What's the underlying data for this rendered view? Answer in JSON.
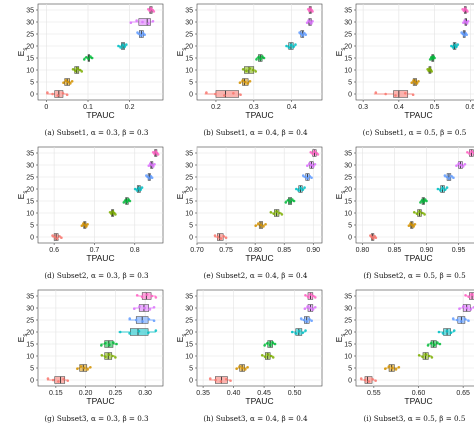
{
  "figure": {
    "colors": {
      "0": "#f8766d",
      "5": "#d39200",
      "10": "#7cae00",
      "15": "#00ba38",
      "20": "#00bfc4",
      "25": "#619cff",
      "30": "#db72fb",
      "35": "#ff61c3"
    }
  },
  "chart_data": [
    {
      "type": "boxplot",
      "caption": "(a) Subset1, α = 0.3, β = 0.3",
      "xlabel": "TPAUC",
      "ylabel": "E_s",
      "xlim": [
        -0.02,
        0.28
      ],
      "xticks": [
        0.0,
        0.1,
        0.2
      ],
      "y": [
        0,
        5,
        10,
        15,
        20,
        25,
        30,
        35
      ],
      "boxes": [
        {
          "y": 0,
          "q1": 0.02,
          "median": 0.03,
          "q3": 0.04,
          "min": 0.0,
          "max": 0.05
        },
        {
          "y": 5,
          "q1": 0.044,
          "median": 0.05,
          "q3": 0.056,
          "min": 0.04,
          "max": 0.062
        },
        {
          "y": 10,
          "q1": 0.068,
          "median": 0.073,
          "q3": 0.078,
          "min": 0.063,
          "max": 0.085
        },
        {
          "y": 15,
          "q1": 0.1,
          "median": 0.102,
          "q3": 0.104,
          "min": 0.09,
          "max": 0.11
        },
        {
          "y": 20,
          "q1": 0.18,
          "median": 0.184,
          "q3": 0.188,
          "min": 0.172,
          "max": 0.192
        },
        {
          "y": 25,
          "q1": 0.223,
          "median": 0.228,
          "q3": 0.233,
          "min": 0.218,
          "max": 0.236
        },
        {
          "y": 30,
          "q1": 0.222,
          "median": 0.242,
          "q3": 0.25,
          "min": 0.2,
          "max": 0.256
        },
        {
          "y": 35,
          "q1": 0.248,
          "median": 0.251,
          "q3": 0.254,
          "min": 0.244,
          "max": 0.258
        }
      ]
    },
    {
      "type": "boxplot",
      "caption": "(b) Subset1, α = 0.4, β = 0.4",
      "xlabel": "TPAUC",
      "ylabel": "E_s",
      "xlim": [
        0.15,
        0.48
      ],
      "xticks": [
        0.2,
        0.3,
        0.4
      ],
      "y": [
        0,
        5,
        10,
        15,
        20,
        25,
        30,
        35
      ],
      "boxes": [
        {
          "y": 0,
          "q1": 0.2,
          "median": 0.225,
          "q3": 0.26,
          "min": 0.17,
          "max": 0.265
        },
        {
          "y": 5,
          "q1": 0.27,
          "median": 0.275,
          "q3": 0.285,
          "min": 0.262,
          "max": 0.29
        },
        {
          "y": 10,
          "q1": 0.275,
          "median": 0.287,
          "q3": 0.3,
          "min": 0.27,
          "max": 0.305
        },
        {
          "y": 15,
          "q1": 0.312,
          "median": 0.317,
          "q3": 0.322,
          "min": 0.306,
          "max": 0.327
        },
        {
          "y": 20,
          "q1": 0.392,
          "median": 0.398,
          "q3": 0.404,
          "min": 0.385,
          "max": 0.41
        },
        {
          "y": 25,
          "q1": 0.424,
          "median": 0.428,
          "q3": 0.432,
          "min": 0.42,
          "max": 0.437
        },
        {
          "y": 30,
          "q1": 0.445,
          "median": 0.448,
          "q3": 0.452,
          "min": 0.44,
          "max": 0.455
        },
        {
          "y": 35,
          "q1": 0.446,
          "median": 0.449,
          "q3": 0.452,
          "min": 0.443,
          "max": 0.455
        }
      ]
    },
    {
      "type": "boxplot",
      "caption": "(c) Subset1, α = 0.5, β = 0.5",
      "xlabel": "TPAUC",
      "ylabel": "E_s",
      "xlim": [
        0.28,
        0.63
      ],
      "xticks": [
        0.3,
        0.4,
        0.5,
        0.6
      ],
      "y": [
        0,
        5,
        10,
        15,
        20,
        25,
        30,
        35
      ],
      "boxes": [
        {
          "y": 0,
          "q1": 0.385,
          "median": 0.4,
          "q3": 0.425,
          "min": 0.33,
          "max": 0.44
        },
        {
          "y": 5,
          "q1": 0.44,
          "median": 0.445,
          "q3": 0.45,
          "min": 0.435,
          "max": 0.455
        },
        {
          "y": 10,
          "q1": 0.484,
          "median": 0.487,
          "q3": 0.49,
          "min": 0.48,
          "max": 0.492
        },
        {
          "y": 15,
          "q1": 0.492,
          "median": 0.495,
          "q3": 0.498,
          "min": 0.487,
          "max": 0.5
        },
        {
          "y": 20,
          "q1": 0.552,
          "median": 0.556,
          "q3": 0.56,
          "min": 0.546,
          "max": 0.565
        },
        {
          "y": 25,
          "q1": 0.58,
          "median": 0.583,
          "q3": 0.586,
          "min": 0.575,
          "max": 0.59
        },
        {
          "y": 30,
          "q1": 0.585,
          "median": 0.588,
          "q3": 0.59,
          "min": 0.58,
          "max": 0.594
        },
        {
          "y": 35,
          "q1": 0.583,
          "median": 0.586,
          "q3": 0.589,
          "min": 0.578,
          "max": 0.592
        }
      ]
    },
    {
      "type": "boxplot",
      "caption": "(d) Subset2, α = 0.3, β = 0.3",
      "xlabel": "TPAUC",
      "ylabel": "E_s",
      "xlim": [
        0.56,
        0.87
      ],
      "xticks": [
        0.6,
        0.7,
        0.8
      ],
      "y": [
        0,
        5,
        10,
        15,
        20,
        25,
        30,
        35
      ],
      "boxes": [
        {
          "y": 0,
          "q1": 0.6,
          "median": 0.605,
          "q3": 0.61,
          "min": 0.595,
          "max": 0.618
        },
        {
          "y": 5,
          "q1": 0.673,
          "median": 0.676,
          "q3": 0.679,
          "min": 0.668,
          "max": 0.683
        },
        {
          "y": 10,
          "q1": 0.742,
          "median": 0.745,
          "q3": 0.748,
          "min": 0.738,
          "max": 0.752
        },
        {
          "y": 15,
          "q1": 0.777,
          "median": 0.78,
          "q3": 0.784,
          "min": 0.772,
          "max": 0.788
        },
        {
          "y": 20,
          "q1": 0.806,
          "median": 0.81,
          "q3": 0.814,
          "min": 0.8,
          "max": 0.818
        },
        {
          "y": 25,
          "q1": 0.833,
          "median": 0.836,
          "q3": 0.839,
          "min": 0.828,
          "max": 0.843
        },
        {
          "y": 30,
          "q1": 0.839,
          "median": 0.842,
          "q3": 0.845,
          "min": 0.834,
          "max": 0.849
        },
        {
          "y": 35,
          "q1": 0.849,
          "median": 0.852,
          "q3": 0.855,
          "min": 0.845,
          "max": 0.858
        }
      ]
    },
    {
      "type": "boxplot",
      "caption": "(e) Subset2, α = 0.4, β = 0.4",
      "xlabel": "TPAUC",
      "ylabel": "E_s",
      "xlim": [
        0.7,
        0.915
      ],
      "xticks": [
        0.7,
        0.75,
        0.8,
        0.85,
        0.9
      ],
      "xticklabels": [
        "0.70",
        "0.75",
        "0.80",
        "0.85",
        "0.90"
      ],
      "y": [
        0,
        5,
        10,
        15,
        20,
        25,
        30,
        35
      ],
      "boxes": [
        {
          "y": 0,
          "q1": 0.735,
          "median": 0.739,
          "q3": 0.745,
          "min": 0.73,
          "max": 0.75
        },
        {
          "y": 5,
          "q1": 0.807,
          "median": 0.81,
          "q3": 0.813,
          "min": 0.8,
          "max": 0.818
        },
        {
          "y": 10,
          "q1": 0.833,
          "median": 0.837,
          "q3": 0.841,
          "min": 0.826,
          "max": 0.846
        },
        {
          "y": 15,
          "q1": 0.857,
          "median": 0.86,
          "q3": 0.863,
          "min": 0.852,
          "max": 0.867
        },
        {
          "y": 20,
          "q1": 0.875,
          "median": 0.878,
          "q3": 0.881,
          "min": 0.87,
          "max": 0.885
        },
        {
          "y": 25,
          "q1": 0.887,
          "median": 0.89,
          "q3": 0.893,
          "min": 0.882,
          "max": 0.897
        },
        {
          "y": 30,
          "q1": 0.894,
          "median": 0.897,
          "q3": 0.9,
          "min": 0.889,
          "max": 0.903
        },
        {
          "y": 35,
          "q1": 0.899,
          "median": 0.902,
          "q3": 0.905,
          "min": 0.895,
          "max": 0.908
        }
      ]
    },
    {
      "type": "boxplot",
      "caption": "(f) Subset2, α = 0.5, β = 0.5",
      "xlabel": "TPAUC",
      "ylabel": "E_s",
      "xlim": [
        0.79,
        0.985
      ],
      "xticks": [
        0.8,
        0.85,
        0.9,
        0.95
      ],
      "xticklabels": [
        "0.80",
        "0.85",
        "0.90",
        "0.95"
      ],
      "y": [
        0,
        5,
        10,
        15,
        20,
        25,
        30,
        35
      ],
      "boxes": [
        {
          "y": 0,
          "q1": 0.814,
          "median": 0.816,
          "q3": 0.818,
          "min": 0.812,
          "max": 0.821
        },
        {
          "y": 5,
          "q1": 0.875,
          "median": 0.877,
          "q3": 0.879,
          "min": 0.872,
          "max": 0.882
        },
        {
          "y": 10,
          "q1": 0.886,
          "median": 0.889,
          "q3": 0.892,
          "min": 0.88,
          "max": 0.897
        },
        {
          "y": 15,
          "q1": 0.893,
          "median": 0.895,
          "q3": 0.897,
          "min": 0.89,
          "max": 0.9
        },
        {
          "y": 20,
          "q1": 0.922,
          "median": 0.925,
          "q3": 0.928,
          "min": 0.917,
          "max": 0.932
        },
        {
          "y": 25,
          "q1": 0.932,
          "median": 0.935,
          "q3": 0.938,
          "min": 0.928,
          "max": 0.942
        },
        {
          "y": 30,
          "q1": 0.95,
          "median": 0.953,
          "q3": 0.956,
          "min": 0.946,
          "max": 0.96
        },
        {
          "y": 35,
          "q1": 0.967,
          "median": 0.97,
          "q3": 0.973,
          "min": 0.963,
          "max": 0.977
        }
      ]
    },
    {
      "type": "boxplot",
      "caption": "(g) Subset3, α = 0.3, β = 0.3",
      "xlabel": "TPAUC",
      "ylabel": "E_s",
      "xlim": [
        0.12,
        0.33
      ],
      "xticks": [
        0.15,
        0.2,
        0.25,
        0.3
      ],
      "xticklabels": [
        "0.15",
        "0.20",
        "0.25",
        "0.30"
      ],
      "y": [
        0,
        5,
        10,
        15,
        20,
        25,
        30,
        35
      ],
      "boxes": [
        {
          "y": 0,
          "q1": 0.148,
          "median": 0.158,
          "q3": 0.165,
          "min": 0.135,
          "max": 0.17
        },
        {
          "y": 5,
          "q1": 0.19,
          "median": 0.196,
          "q3": 0.202,
          "min": 0.185,
          "max": 0.208
        },
        {
          "y": 10,
          "q1": 0.232,
          "median": 0.238,
          "q3": 0.244,
          "min": 0.226,
          "max": 0.25
        },
        {
          "y": 15,
          "q1": 0.232,
          "median": 0.239,
          "q3": 0.246,
          "min": 0.225,
          "max": 0.252
        },
        {
          "y": 20,
          "q1": 0.275,
          "median": 0.288,
          "q3": 0.305,
          "min": 0.255,
          "max": 0.318
        },
        {
          "y": 25,
          "q1": 0.285,
          "median": 0.295,
          "q3": 0.305,
          "min": 0.272,
          "max": 0.315
        },
        {
          "y": 30,
          "q1": 0.29,
          "median": 0.298,
          "q3": 0.306,
          "min": 0.28,
          "max": 0.315
        },
        {
          "y": 35,
          "q1": 0.295,
          "median": 0.302,
          "q3": 0.31,
          "min": 0.285,
          "max": 0.318
        }
      ]
    },
    {
      "type": "boxplot",
      "caption": "(h) Subset3, α = 0.4, β = 0.4",
      "xlabel": "TPAUC",
      "ylabel": "E_s",
      "xlim": [
        0.34,
        0.545
      ],
      "xticks": [
        0.35,
        0.4,
        0.45,
        0.5
      ],
      "xticklabels": [
        "0.35",
        "0.40",
        "0.45",
        "0.50"
      ],
      "y": [
        0,
        5,
        10,
        15,
        20,
        25,
        30,
        35
      ],
      "boxes": [
        {
          "y": 0,
          "q1": 0.37,
          "median": 0.38,
          "q3": 0.39,
          "min": 0.36,
          "max": 0.395
        },
        {
          "y": 5,
          "q1": 0.41,
          "median": 0.414,
          "q3": 0.418,
          "min": 0.404,
          "max": 0.423
        },
        {
          "y": 10,
          "q1": 0.452,
          "median": 0.456,
          "q3": 0.46,
          "min": 0.446,
          "max": 0.465
        },
        {
          "y": 15,
          "q1": 0.456,
          "median": 0.46,
          "q3": 0.464,
          "min": 0.45,
          "max": 0.468
        },
        {
          "y": 20,
          "q1": 0.502,
          "median": 0.507,
          "q3": 0.512,
          "min": 0.495,
          "max": 0.518
        },
        {
          "y": 25,
          "q1": 0.516,
          "median": 0.52,
          "q3": 0.524,
          "min": 0.51,
          "max": 0.528
        },
        {
          "y": 30,
          "q1": 0.522,
          "median": 0.526,
          "q3": 0.53,
          "min": 0.516,
          "max": 0.534
        },
        {
          "y": 35,
          "q1": 0.522,
          "median": 0.526,
          "q3": 0.53,
          "min": 0.517,
          "max": 0.534
        }
      ]
    },
    {
      "type": "boxplot",
      "caption": "(i) Subset3, α = 0.5, β = 0.5",
      "xlabel": "TPAUC",
      "ylabel": "E_s",
      "xlim": [
        0.53,
        0.67
      ],
      "xticks": [
        0.55,
        0.6,
        0.65
      ],
      "xticklabels": [
        "0.55",
        "0.60",
        "0.65"
      ],
      "y": [
        0,
        5,
        10,
        15,
        20,
        25,
        30,
        35
      ],
      "boxes": [
        {
          "y": 0,
          "q1": 0.54,
          "median": 0.543,
          "q3": 0.548,
          "min": 0.535,
          "max": 0.552
        },
        {
          "y": 5,
          "q1": 0.567,
          "median": 0.57,
          "q3": 0.573,
          "min": 0.562,
          "max": 0.578
        },
        {
          "y": 10,
          "q1": 0.605,
          "median": 0.608,
          "q3": 0.611,
          "min": 0.6,
          "max": 0.615
        },
        {
          "y": 15,
          "q1": 0.614,
          "median": 0.617,
          "q3": 0.62,
          "min": 0.61,
          "max": 0.624
        },
        {
          "y": 20,
          "q1": 0.628,
          "median": 0.632,
          "q3": 0.636,
          "min": 0.622,
          "max": 0.64
        },
        {
          "y": 25,
          "q1": 0.644,
          "median": 0.648,
          "q3": 0.652,
          "min": 0.638,
          "max": 0.656
        },
        {
          "y": 30,
          "q1": 0.65,
          "median": 0.654,
          "q3": 0.658,
          "min": 0.645,
          "max": 0.662
        },
        {
          "y": 35,
          "q1": 0.657,
          "median": 0.66,
          "q3": 0.663,
          "min": 0.652,
          "max": 0.666
        }
      ]
    }
  ]
}
